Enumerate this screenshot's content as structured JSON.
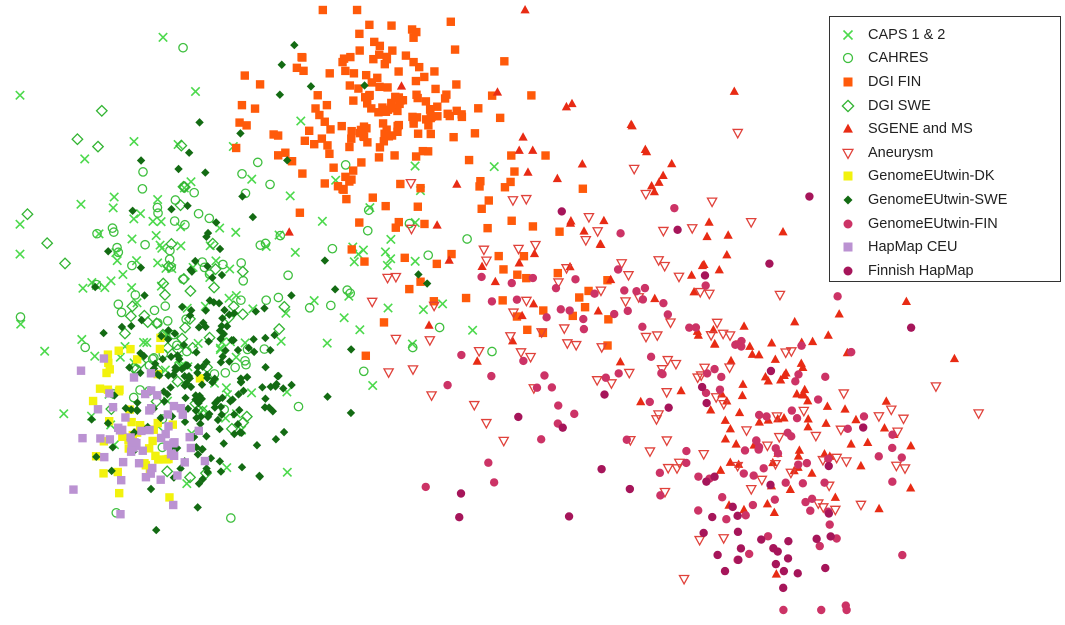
{
  "chart_data": {
    "type": "scatter",
    "title": "",
    "xlabel": "",
    "ylabel": "",
    "axes_visible": false,
    "grid": false,
    "legend_position": "top-right",
    "xlim": [
      0,
      100
    ],
    "ylim": [
      0,
      60
    ],
    "series": [
      {
        "name": "CAPS 1 & 2",
        "marker": "x",
        "color": "#4cd94c",
        "count": 130,
        "clusters": [
          {
            "cx": 15,
            "cy": 32,
            "sx": 7,
            "sy": 10,
            "n": 100
          },
          {
            "cx": 35,
            "cy": 35,
            "sx": 7,
            "sy": 6,
            "n": 30
          }
        ]
      },
      {
        "name": "CAHRES",
        "marker": "circle-open",
        "color": "#3fbf3f",
        "count": 90,
        "clusters": [
          {
            "cx": 17,
            "cy": 33,
            "sx": 6,
            "sy": 9,
            "n": 70
          },
          {
            "cx": 35,
            "cy": 31,
            "sx": 8,
            "sy": 5,
            "n": 20
          }
        ]
      },
      {
        "name": "DGI FIN",
        "marker": "square",
        "color": "#ff5a0a",
        "count": 210,
        "clusters": [
          {
            "cx": 38,
            "cy": 50,
            "sx": 6,
            "sy": 4.5,
            "n": 160
          },
          {
            "cx": 50,
            "cy": 36,
            "sx": 9,
            "sy": 6,
            "n": 50
          }
        ]
      },
      {
        "name": "DGI SWE",
        "marker": "diamond-open",
        "color": "#32b432",
        "count": 55,
        "clusters": [
          {
            "cx": 17,
            "cy": 30,
            "sx": 6,
            "sy": 9,
            "n": 55
          }
        ]
      },
      {
        "name": "SGENE and MS",
        "marker": "triangle",
        "color": "#e82b14",
        "count": 140,
        "clusters": [
          {
            "cx": 60,
            "cy": 38,
            "sx": 11,
            "sy": 8,
            "n": 60
          },
          {
            "cx": 80,
            "cy": 20,
            "sx": 6,
            "sy": 5,
            "n": 80
          }
        ]
      },
      {
        "name": "Aneurysm",
        "marker": "triangle-down-open",
        "color": "#e0413a",
        "count": 120,
        "clusters": [
          {
            "cx": 58,
            "cy": 30,
            "sx": 12,
            "sy": 7,
            "n": 70
          },
          {
            "cx": 80,
            "cy": 18,
            "sx": 7,
            "sy": 6,
            "n": 50
          }
        ]
      },
      {
        "name": "GenomeEUtwin-DK",
        "marker": "square",
        "color": "#f2f20d",
        "count": 45,
        "clusters": [
          {
            "cx": 12,
            "cy": 19,
            "sx": 3,
            "sy": 4,
            "n": 45
          }
        ]
      },
      {
        "name": "GenomeEUtwin-SWE",
        "marker": "diamond",
        "color": "#136b13",
        "count": 220,
        "clusters": [
          {
            "cx": 19,
            "cy": 22,
            "sx": 5,
            "sy": 5,
            "n": 180
          },
          {
            "cx": 22,
            "cy": 38,
            "sx": 7,
            "sy": 8,
            "n": 40
          }
        ]
      },
      {
        "name": "GenomeEUtwin-FIN",
        "marker": "circle",
        "color": "#cc3366",
        "count": 120,
        "clusters": [
          {
            "cx": 62,
            "cy": 26,
            "sx": 9,
            "sy": 6,
            "n": 60
          },
          {
            "cx": 80,
            "cy": 13,
            "sx": 6,
            "sy": 6,
            "n": 60
          }
        ]
      },
      {
        "name": "HapMap CEU",
        "marker": "square",
        "color": "#bb92d2",
        "count": 60,
        "clusters": [
          {
            "cx": 13,
            "cy": 18,
            "sx": 3,
            "sy": 3.5,
            "n": 60
          }
        ]
      },
      {
        "name": "Finnish HapMap",
        "marker": "circle",
        "color": "#a6155a",
        "count": 45,
        "clusters": [
          {
            "cx": 70,
            "cy": 22,
            "sx": 12,
            "sy": 8,
            "n": 25
          },
          {
            "cx": 79,
            "cy": 6,
            "sx": 4,
            "sy": 2.5,
            "n": 20
          }
        ]
      }
    ]
  }
}
